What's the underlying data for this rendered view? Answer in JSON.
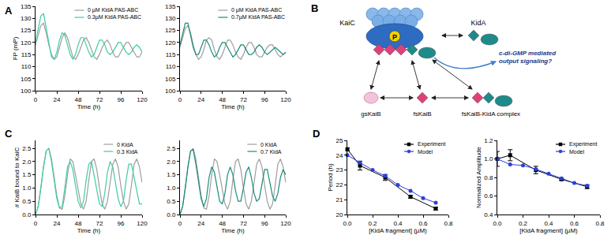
{
  "chart_data": [
    {
      "panel": "A",
      "type": "line",
      "xlabel": "Time (h)",
      "ylabel": "FP (mP)",
      "x": [
        0,
        3,
        6,
        9,
        12,
        15,
        18,
        21,
        24,
        27,
        30,
        33,
        36,
        39,
        42,
        45,
        48,
        51,
        54,
        57,
        60,
        63,
        66,
        69,
        72,
        75,
        78,
        81,
        84,
        87,
        90,
        93,
        96,
        99,
        102,
        105,
        108,
        111,
        114,
        117,
        120
      ],
      "series": [
        {
          "name": "0 µM KidA PAS-ABC",
          "color": "#9e9e9e",
          "values": [
            119,
            123,
            127,
            128,
            124,
            119,
            115,
            113,
            114,
            118,
            122,
            124,
            122,
            118,
            114,
            113,
            115,
            118,
            121,
            122,
            120,
            117,
            114,
            113,
            115,
            118,
            120,
            121,
            119,
            116,
            114,
            114,
            116,
            118,
            120,
            120,
            118,
            116,
            114,
            114,
            116
          ]
        },
        {
          "name": "0.3µM KidA PAS-ABC",
          "color": "#3dcca6",
          "values": [
            120,
            126,
            131,
            132,
            126,
            119,
            114,
            113,
            116,
            121,
            124,
            123,
            119,
            115,
            113,
            115,
            119,
            122,
            122,
            119,
            116,
            114,
            115,
            118,
            121,
            121,
            119,
            116,
            115,
            116,
            118,
            120,
            120,
            118,
            116,
            115,
            116,
            118,
            119,
            118,
            116
          ]
        }
      ],
      "xlim": [
        0,
        120
      ],
      "xticks": [
        0,
        24,
        48,
        72,
        96,
        120
      ],
      "ylim": [
        100,
        135
      ],
      "yticks": [
        100,
        105,
        110,
        115,
        120,
        125,
        130,
        135
      ],
      "grid": false,
      "legend": "top right"
    },
    {
      "type": "line",
      "xlabel": "Time (h)",
      "x": [
        0,
        3,
        6,
        9,
        12,
        15,
        18,
        21,
        24,
        27,
        30,
        33,
        36,
        39,
        42,
        45,
        48,
        51,
        54,
        57,
        60,
        63,
        66,
        69,
        72,
        75,
        78,
        81,
        84,
        87,
        90,
        93,
        96,
        99,
        102,
        105,
        108,
        111,
        114,
        117,
        120
      ],
      "series": [
        {
          "name": "0 µM KidA PAS-ABC",
          "color": "#9e9e9e",
          "values": [
            118,
            122,
            126,
            127,
            124,
            119,
            115,
            113,
            114,
            117,
            121,
            122,
            121,
            117,
            114,
            113,
            115,
            118,
            121,
            121,
            119,
            116,
            114,
            113,
            115,
            118,
            120,
            120,
            118,
            115,
            114,
            114,
            116,
            118,
            119,
            119,
            117,
            115,
            114,
            115,
            116
          ]
        },
        {
          "name": "0.7µM KidA PAS-ABC",
          "color": "#1c8a7a",
          "values": [
            119,
            124,
            128,
            128,
            123,
            118,
            115,
            115,
            118,
            121,
            121,
            119,
            116,
            114,
            115,
            118,
            120,
            120,
            118,
            116,
            114,
            115,
            117,
            119,
            119,
            117,
            115,
            115,
            116,
            118,
            119,
            118,
            116,
            115,
            116,
            117,
            118,
            117,
            116,
            115,
            116
          ]
        }
      ],
      "xlim": [
        0,
        120
      ],
      "xticks": [
        0,
        24,
        48,
        72,
        96,
        120
      ],
      "ylim": [
        100,
        135
      ],
      "yticks": [
        100,
        105,
        110,
        115,
        120,
        125,
        130,
        135
      ],
      "grid": false,
      "legend": "top right"
    },
    {
      "panel": "C",
      "type": "line",
      "xlabel": "Time (h)",
      "ylabel": "# KaiB bound to KaiC",
      "x": [
        0,
        3,
        6,
        9,
        12,
        15,
        18,
        21,
        24,
        27,
        30,
        33,
        36,
        39,
        42,
        45,
        48,
        51,
        54,
        57,
        60,
        63,
        66,
        69,
        72,
        75,
        78,
        81,
        84,
        87,
        90,
        93,
        96,
        99,
        102,
        105,
        108,
        111,
        114,
        117,
        120
      ],
      "series": [
        {
          "name": "0 KidA",
          "color": "#9e9e9e",
          "values": [
            0.0,
            0.3,
            1.0,
            1.8,
            2.4,
            2.5,
            2.1,
            1.4,
            0.7,
            0.25,
            0.2,
            0.7,
            1.5,
            2.1,
            2.0,
            1.5,
            0.9,
            0.4,
            0.2,
            0.5,
            1.3,
            2.0,
            2.1,
            1.7,
            1.0,
            0.4,
            0.2,
            0.5,
            1.2,
            1.9,
            2.1,
            1.8,
            1.1,
            0.5,
            0.2,
            0.4,
            1.1,
            1.9,
            2.1,
            1.8,
            1.2
          ]
        },
        {
          "name": "0.3 KidA",
          "color": "#3dcca6",
          "values": [
            0.0,
            0.3,
            1.0,
            1.8,
            2.4,
            2.5,
            2.0,
            1.3,
            0.6,
            0.25,
            0.3,
            1.0,
            1.8,
            2.0,
            1.7,
            1.1,
            0.5,
            0.25,
            0.5,
            1.3,
            1.9,
            2.0,
            1.5,
            0.9,
            0.4,
            0.3,
            0.8,
            1.6,
            2.0,
            1.8,
            1.2,
            0.6,
            0.3,
            0.5,
            1.3,
            1.9,
            1.9,
            1.4,
            0.8,
            0.4,
            0.4
          ]
        }
      ],
      "xlim": [
        0,
        120
      ],
      "xticks": [
        0,
        24,
        48,
        72,
        96,
        120
      ],
      "ylim": [
        0,
        2.8
      ],
      "yticks": [
        {
          "value": 0,
          "label": "0.0"
        },
        0.5,
        {
          "value": 1,
          "label": "1.0"
        },
        1.5,
        {
          "value": 2,
          "label": "2.0"
        },
        2.5
      ],
      "grid": false,
      "legend": "top right"
    },
    {
      "type": "line",
      "xlabel": "Time (h)",
      "x": [
        0,
        3,
        6,
        9,
        12,
        15,
        18,
        21,
        24,
        27,
        30,
        33,
        36,
        39,
        42,
        45,
        48,
        51,
        54,
        57,
        60,
        63,
        66,
        69,
        72,
        75,
        78,
        81,
        84,
        87,
        90,
        93,
        96,
        99,
        102,
        105,
        108,
        111,
        114,
        117,
        120
      ],
      "series": [
        {
          "name": "0 KidA",
          "color": "#9e9e9e",
          "values": [
            0.0,
            0.3,
            1.0,
            1.8,
            2.4,
            2.5,
            2.1,
            1.4,
            0.7,
            0.25,
            0.2,
            0.7,
            1.5,
            2.1,
            2.0,
            1.5,
            0.9,
            0.4,
            0.2,
            0.5,
            1.3,
            2.0,
            2.1,
            1.7,
            1.0,
            0.4,
            0.2,
            0.5,
            1.2,
            1.9,
            2.1,
            1.8,
            1.1,
            0.5,
            0.2,
            0.4,
            1.1,
            1.9,
            2.1,
            1.8,
            1.2
          ]
        },
        {
          "name": "0.7 KidA",
          "color": "#1c8a7a",
          "values": [
            0.0,
            0.3,
            1.0,
            1.8,
            2.4,
            2.45,
            1.9,
            1.2,
            0.6,
            0.3,
            0.6,
            1.4,
            1.8,
            1.6,
            1.0,
            0.5,
            0.4,
            0.8,
            1.5,
            1.8,
            1.5,
            0.9,
            0.5,
            0.5,
            1.0,
            1.6,
            1.8,
            1.4,
            0.8,
            0.5,
            0.6,
            1.2,
            1.7,
            1.7,
            1.2,
            0.7,
            0.5,
            0.8,
            1.4,
            1.7,
            1.5
          ]
        }
      ],
      "xlim": [
        0,
        120
      ],
      "xticks": [
        0,
        24,
        48,
        72,
        96,
        120
      ],
      "ylim": [
        0,
        2.8
      ],
      "yticks": [
        {
          "value": 0,
          "label": "0.0"
        },
        0.5,
        {
          "value": 1,
          "label": "1.0"
        },
        1.5,
        {
          "value": 2,
          "label": "2.0"
        },
        2.5
      ],
      "grid": false,
      "legend": "top right"
    },
    {
      "panel": "D",
      "type": "line",
      "xlabel": "[KidA fragment] (µM)",
      "ylabel": "Period (h)",
      "series": [
        {
          "name": "Experiment",
          "color": "#000000",
          "marker": "square",
          "x": [
            0,
            0.1,
            0.3,
            0.5,
            0.7
          ],
          "values": [
            24.4,
            23.3,
            22.5,
            21.2,
            20.4
          ],
          "errors": [
            0.1,
            0.3,
            0.2,
            0.1,
            0.1
          ]
        },
        {
          "name": "Model",
          "color": "#2b3fd9",
          "marker": "circle",
          "x": [
            0,
            0.1,
            0.2,
            0.3,
            0.4,
            0.5,
            0.6,
            0.7
          ],
          "values": [
            24.0,
            23.5,
            23.0,
            22.6,
            22.0,
            21.6,
            21.1,
            20.8
          ]
        }
      ],
      "xlim": [
        0,
        0.8
      ],
      "xticks": [
        {
          "value": 0,
          "label": "0.0"
        },
        0.2,
        0.4,
        0.6,
        0.8
      ],
      "ylim": [
        20,
        25
      ],
      "yticks": [
        20,
        21,
        22,
        23,
        24,
        25
      ],
      "grid": false,
      "legend": "top right"
    },
    {
      "type": "line",
      "xlabel": "[KidA fragment] (µM)",
      "ylabel": "Normalized Amplitude",
      "series": [
        {
          "name": "Experiment",
          "color": "#000000",
          "marker": "square",
          "x": [
            0,
            0.1,
            0.3,
            0.5,
            0.7
          ],
          "values": [
            1.0,
            1.04,
            0.88,
            0.78,
            0.7
          ],
          "errors": [
            0.08,
            0.06,
            0.04,
            0.01,
            0.02
          ]
        },
        {
          "name": "Model",
          "color": "#2b3fd9",
          "marker": "circle",
          "x": [
            0,
            0.1,
            0.2,
            0.3,
            0.4,
            0.5,
            0.6,
            0.7
          ],
          "values": [
            1.0,
            0.94,
            0.93,
            0.89,
            0.84,
            0.79,
            0.74,
            0.71
          ]
        }
      ],
      "xlim": [
        0,
        0.8
      ],
      "xticks": [
        {
          "value": 0,
          "label": "0.0"
        },
        0.2,
        0.4,
        0.6,
        0.8
      ],
      "ylim": [
        0.4,
        1.2
      ],
      "yticks": [
        0.4,
        0.6,
        0.8,
        {
          "value": 1,
          "label": "1.0"
        },
        1.2
      ],
      "grid": false,
      "legend": "top right"
    }
  ],
  "diagram": {
    "panel": "B",
    "kaic": "KaiC",
    "phospho": "P",
    "kida": "KidA",
    "gskaib": "gsKaiB",
    "fskaib": "fsKaiB",
    "complex": "fsKaiB-KidA complex",
    "output": [
      "c-di-GMP mediated",
      "output signaling?"
    ]
  }
}
